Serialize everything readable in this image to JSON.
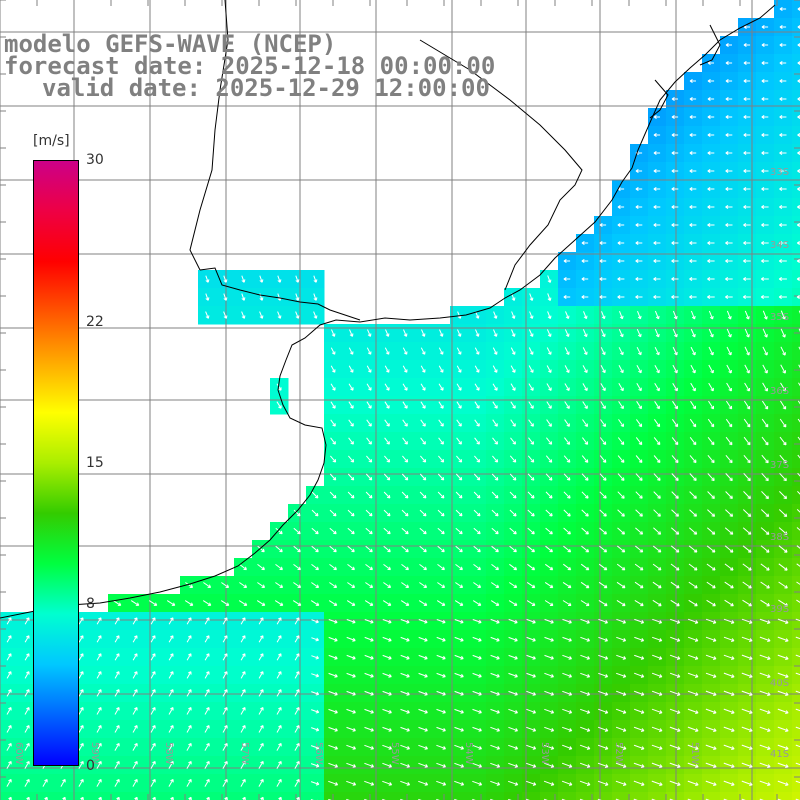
{
  "title": {
    "line1": "modelo GEFS-WAVE (NCEP)",
    "line2": "forecast date: 2025-12-18 00:00:00",
    "line3": "valid date: 2025-12-29 12:00:00"
  },
  "colorbar": {
    "unit": "[m/s]",
    "ticks": [
      "30",
      "22",
      "15",
      "8",
      "0"
    ],
    "tick_values": [
      30,
      22,
      15,
      8,
      0
    ],
    "range": [
      0,
      30
    ],
    "colors": [
      "#0000ff",
      "#0066ff",
      "#00c8ff",
      "#00ffd0",
      "#00ff40",
      "#33cc00",
      "#aaee00",
      "#ffff00",
      "#ffaa00",
      "#ff5500",
      "#ff0000",
      "#ee0044",
      "#cc0088"
    ]
  },
  "graticule": {
    "lat_labels": [
      "33S",
      "34S",
      "35S",
      "36S",
      "37S",
      "38S",
      "39S",
      "40S",
      "41S"
    ],
    "lon_labels": [
      "60W",
      "59W",
      "58W",
      "57W",
      "56W",
      "55W",
      "54W",
      "53W",
      "52W",
      "51W"
    ]
  },
  "style": {
    "land": "#ffffff",
    "grid": "#808080",
    "coast": "#000000",
    "arrow": "#ffffff"
  }
}
